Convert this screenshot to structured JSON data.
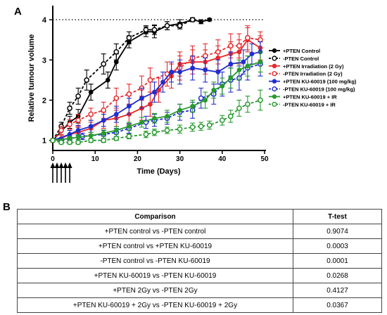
{
  "panel_a_label": "A",
  "panel_b_label": "B",
  "colors": {
    "black": "#000000",
    "red": "#e8292b",
    "blue": "#1f2ecf",
    "green": "#279a2d"
  },
  "chart_data": {
    "type": "line",
    "xlabel": "Time (Days)",
    "ylabel": "Relative tumour volume",
    "xlim": [
      0,
      50
    ],
    "ylim": [
      0.75,
      4.35
    ],
    "x_ticks": [
      0,
      10,
      20,
      30,
      40,
      50
    ],
    "y_ticks": [
      1,
      2,
      3,
      4
    ],
    "reference_line": {
      "y": 4,
      "style": "dotted"
    },
    "treatment_arrows_days": [
      0,
      1,
      2,
      3,
      4
    ],
    "legend_position": "right",
    "series": [
      {
        "name": "+PTEN Control",
        "color": "#000000",
        "filled": true,
        "x": [
          0,
          4,
          6,
          9,
          13,
          15,
          18,
          22,
          24,
          27,
          30,
          33,
          35,
          37
        ],
        "y": [
          1.0,
          1.45,
          1.6,
          2.2,
          2.5,
          2.95,
          3.45,
          3.7,
          3.7,
          3.85,
          3.9,
          4.0,
          3.95,
          4.0
        ],
        "err": [
          0.04,
          0.15,
          0.17,
          0.2,
          0.2,
          0.2,
          0.15,
          0.12,
          0.15,
          0.1,
          0.1,
          0.05,
          0.05,
          0.03
        ]
      },
      {
        "name": "-PTEN Control",
        "color": "#000000",
        "filled": false,
        "x": [
          0,
          2,
          4,
          6,
          8,
          12,
          15,
          18,
          22,
          24,
          27,
          30,
          33
        ],
        "y": [
          1.0,
          1.35,
          1.8,
          2.1,
          2.5,
          2.9,
          3.2,
          3.55,
          3.75,
          3.75,
          3.85,
          3.85,
          4.0
        ],
        "err": [
          0.04,
          0.1,
          0.15,
          0.2,
          0.25,
          0.25,
          0.2,
          0.15,
          0.1,
          0.12,
          0.1,
          0.08,
          0.03
        ]
      },
      {
        "name": "+PTEN Irradiation (2 Gy)",
        "color": "#e8292b",
        "filled": true,
        "x": [
          0,
          2,
          4,
          6,
          9,
          12,
          15,
          18,
          21,
          23,
          25,
          28,
          30,
          33,
          36,
          39,
          42,
          44,
          46,
          49
        ],
        "y": [
          1.0,
          1.05,
          1.15,
          1.2,
          1.3,
          1.5,
          1.55,
          1.65,
          1.8,
          1.9,
          2.25,
          2.6,
          2.9,
          2.95,
          2.95,
          3.05,
          3.15,
          3.2,
          3.5,
          3.3
        ],
        "err": [
          0.03,
          0.08,
          0.1,
          0.12,
          0.15,
          0.2,
          0.2,
          0.25,
          0.3,
          0.3,
          0.3,
          0.3,
          0.3,
          0.3,
          0.3,
          0.3,
          0.3,
          0.3,
          0.3,
          0.3
        ]
      },
      {
        "name": "-PTEN Irradiation (2 Gy)",
        "color": "#e8292b",
        "filled": false,
        "x": [
          0,
          2,
          4,
          6,
          9,
          12,
          15,
          18,
          21,
          23,
          27,
          30,
          33,
          36,
          39,
          42,
          44,
          46,
          49
        ],
        "y": [
          1.0,
          1.25,
          1.4,
          1.5,
          1.65,
          1.75,
          2.05,
          2.15,
          2.3,
          2.5,
          2.65,
          2.8,
          3.05,
          3.1,
          3.2,
          3.35,
          3.35,
          3.55,
          3.5
        ],
        "err": [
          0.04,
          0.1,
          0.12,
          0.15,
          0.15,
          0.2,
          0.25,
          0.25,
          0.3,
          0.3,
          0.3,
          0.3,
          0.3,
          0.3,
          0.3,
          0.3,
          0.3,
          0.3,
          0.2
        ]
      },
      {
        "name": "+PTEN KU-60019 (100 mg/kg)",
        "color": "#1f2ecf",
        "filled": true,
        "x": [
          0,
          4,
          6,
          9,
          12,
          15,
          18,
          21,
          24,
          26,
          28,
          30,
          33,
          36,
          39,
          42,
          45,
          47,
          49
        ],
        "y": [
          1.0,
          1.15,
          1.25,
          1.35,
          1.5,
          1.65,
          1.85,
          2.05,
          2.2,
          2.45,
          2.7,
          2.7,
          2.8,
          2.75,
          2.7,
          2.9,
          2.95,
          3.15,
          3.2
        ],
        "err": [
          0.03,
          0.1,
          0.12,
          0.15,
          0.15,
          0.2,
          0.2,
          0.25,
          0.25,
          0.25,
          0.25,
          0.3,
          0.3,
          0.3,
          0.3,
          0.3,
          0.3,
          0.25,
          0.25
        ]
      },
      {
        "name": "-PTEN KU-60019 (100 mg/kg)",
        "color": "#1f2ecf",
        "filled": false,
        "x": [
          0,
          2,
          4,
          7,
          12,
          15,
          18,
          22,
          24,
          27,
          30,
          33,
          35,
          38,
          40,
          42,
          44,
          46,
          49
        ],
        "y": [
          1.0,
          1.0,
          1.05,
          1.1,
          1.15,
          1.2,
          1.3,
          1.45,
          1.5,
          1.55,
          1.7,
          1.75,
          2.05,
          2.15,
          2.4,
          2.5,
          2.55,
          2.8,
          2.9
        ],
        "err": [
          0.03,
          0.05,
          0.05,
          0.08,
          0.1,
          0.1,
          0.12,
          0.15,
          0.15,
          0.15,
          0.2,
          0.2,
          0.25,
          0.25,
          0.3,
          0.3,
          0.3,
          0.3,
          0.3
        ]
      },
      {
        "name": "+PTEN KU-60019 + IR",
        "color": "#279a2d",
        "filled": true,
        "x": [
          0,
          4,
          6,
          9,
          12,
          15,
          18,
          21,
          24,
          27,
          30,
          33,
          36,
          38,
          40,
          42,
          44,
          46,
          49
        ],
        "y": [
          1.0,
          1.05,
          1.08,
          1.12,
          1.18,
          1.25,
          1.35,
          1.45,
          1.55,
          1.6,
          1.75,
          1.85,
          2.0,
          2.25,
          2.35,
          2.55,
          2.75,
          2.85,
          2.95
        ],
        "err": [
          0.03,
          0.05,
          0.06,
          0.08,
          0.08,
          0.1,
          0.1,
          0.12,
          0.12,
          0.15,
          0.15,
          0.15,
          0.2,
          0.2,
          0.2,
          0.25,
          0.25,
          0.25,
          0.25
        ]
      },
      {
        "name": "-PTEN KU-60019 + IR",
        "color": "#279a2d",
        "filled": false,
        "x": [
          0,
          2,
          4,
          6,
          9,
          12,
          15,
          18,
          22,
          24,
          27,
          30,
          33,
          35,
          37,
          40,
          42,
          44,
          46,
          49
        ],
        "y": [
          1.0,
          0.95,
          0.95,
          0.95,
          1.0,
          1.0,
          1.05,
          1.1,
          1.15,
          1.2,
          1.25,
          1.28,
          1.33,
          1.35,
          1.38,
          1.5,
          1.6,
          1.8,
          1.9,
          2.0
        ],
        "err": [
          0.03,
          0.04,
          0.04,
          0.04,
          0.05,
          0.05,
          0.05,
          0.06,
          0.08,
          0.08,
          0.08,
          0.1,
          0.1,
          0.1,
          0.1,
          0.12,
          0.15,
          0.2,
          0.2,
          0.25
        ]
      }
    ]
  },
  "ttest_table": {
    "headers": [
      "Comparison",
      "T-test"
    ],
    "rows": [
      [
        "+PTEN control vs -PTEN control",
        "0.9074"
      ],
      [
        "+PTEN control vs +PTEN KU-60019",
        "0.0003"
      ],
      [
        "-PTEN control vs -PTEN KU-60019",
        "0.0001"
      ],
      [
        "+PTEN KU-60019 vs -PTEN KU-60019",
        "0.0268"
      ],
      [
        "+PTEN 2Gy vs -PTEN 2Gy",
        "0.4127"
      ],
      [
        "+PTEN KU-60019 + 2Gy vs -PTEN KU-60019 + 2Gy",
        "0.0367"
      ]
    ]
  }
}
